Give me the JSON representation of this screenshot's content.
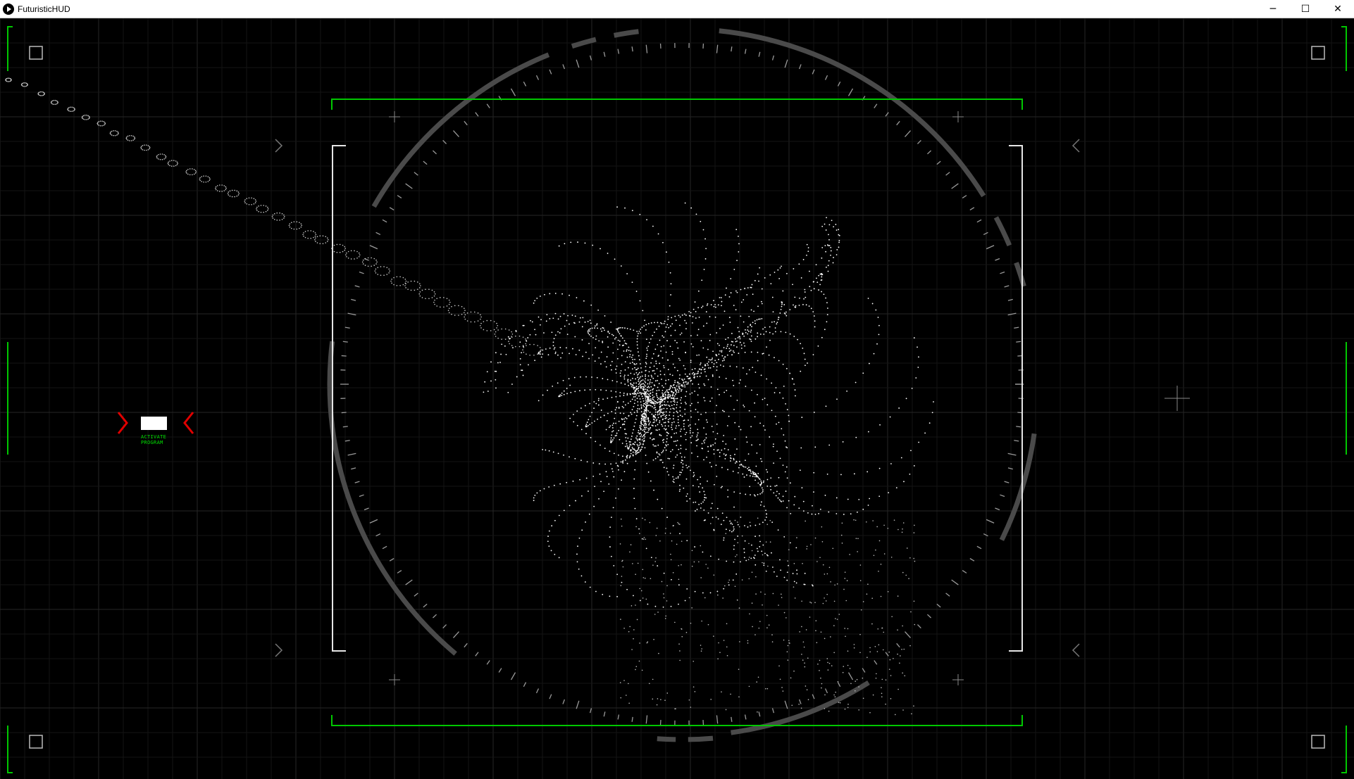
{
  "window": {
    "title": "FuturisticHUD",
    "controls": {
      "minimize": "─",
      "maximize": "☐",
      "close": "✕"
    }
  },
  "hud": {
    "activate_label_line1": "ACTIVATE",
    "activate_label_line2": "PROGRAM",
    "colors": {
      "background": "#000000",
      "grid": "#1c1c1c",
      "frame_green": "#00c800",
      "arrow_red": "#e00000",
      "ring_gray": "#444444",
      "particles": "#ffffff"
    }
  }
}
